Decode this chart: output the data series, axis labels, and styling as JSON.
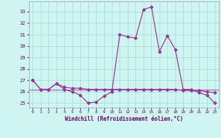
{
  "x": [
    0,
    1,
    2,
    3,
    4,
    5,
    6,
    7,
    8,
    9,
    10,
    11,
    12,
    13,
    14,
    15,
    16,
    17,
    18,
    19,
    20,
    21,
    22,
    23
  ],
  "y_main": [
    27.0,
    26.2,
    26.2,
    26.7,
    26.2,
    26.0,
    25.7,
    25.0,
    25.1,
    25.6,
    26.0,
    31.0,
    30.8,
    30.7,
    33.2,
    33.4,
    29.5,
    30.9,
    29.7,
    26.2,
    26.2,
    25.9,
    25.7,
    25.0
  ],
  "y_flat": [
    27.0,
    26.2,
    26.2,
    26.7,
    26.4,
    26.3,
    26.3,
    26.2,
    26.2,
    26.2,
    26.2,
    26.2,
    26.2,
    26.2,
    26.2,
    26.2,
    26.2,
    26.2,
    26.2,
    26.1,
    26.1,
    26.1,
    26.0,
    25.9
  ],
  "line_color": "#993399",
  "bg_color": "#cef5f0",
  "grid_color": "#aaddd8",
  "xlabel": "Windchill (Refroidissement éolien,°C)",
  "ylim": [
    24.6,
    33.9
  ],
  "yticks": [
    25,
    26,
    27,
    28,
    29,
    30,
    31,
    32,
    33
  ],
  "xticks": [
    0,
    1,
    2,
    3,
    4,
    5,
    6,
    7,
    8,
    9,
    10,
    11,
    12,
    13,
    14,
    15,
    16,
    17,
    18,
    19,
    20,
    21,
    22,
    23
  ],
  "marker": "D",
  "markersize": 2.0,
  "linewidth": 0.9
}
